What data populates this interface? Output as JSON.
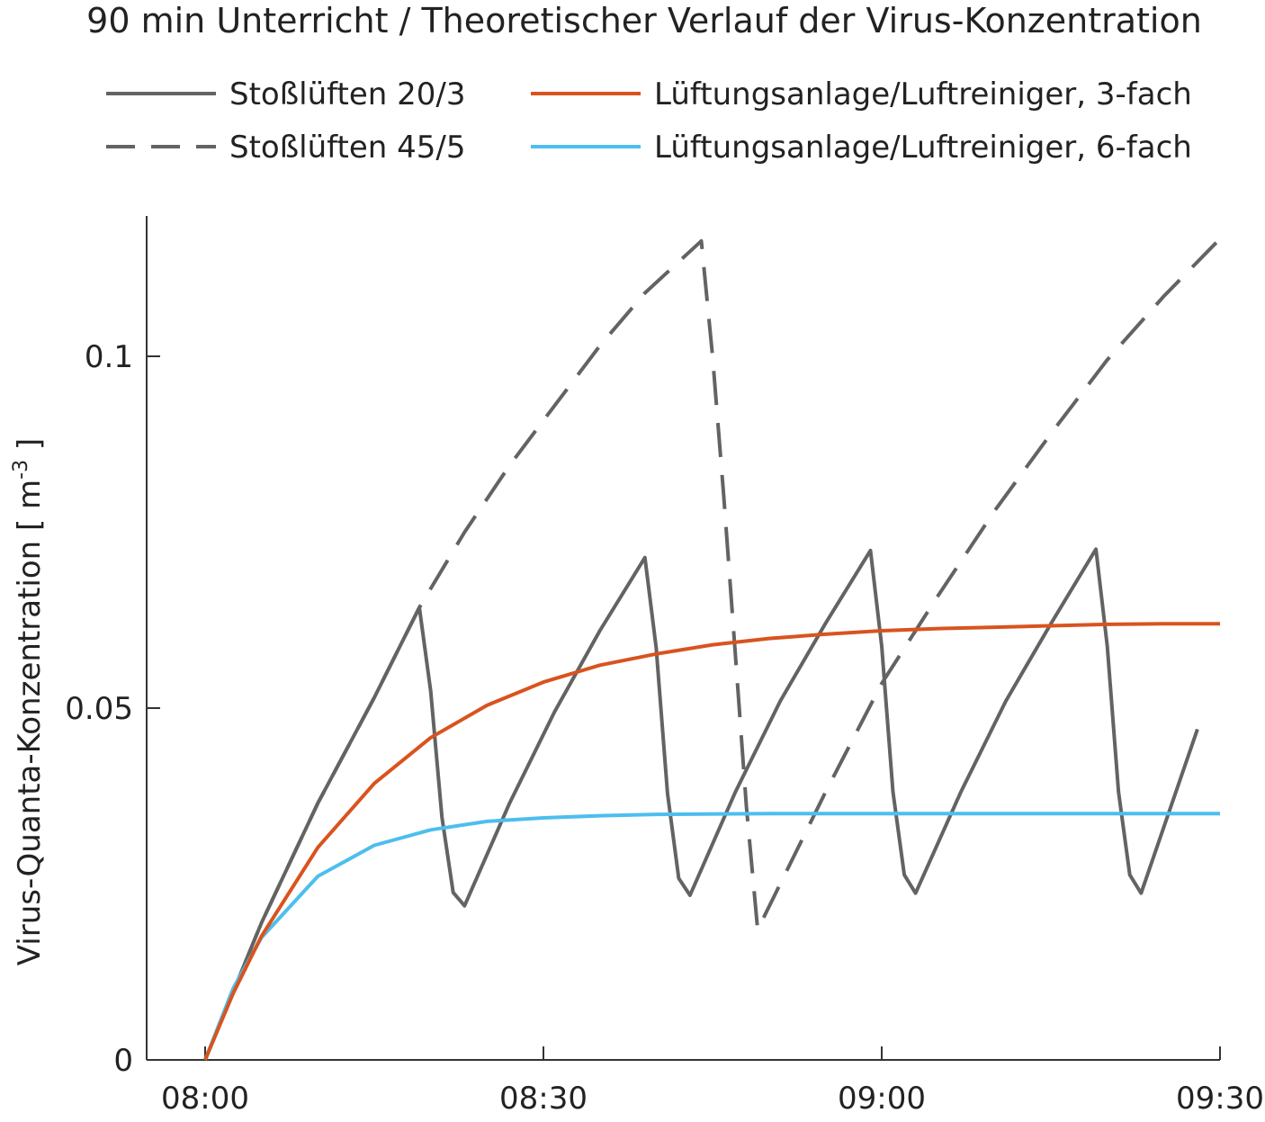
{
  "chart_data": {
    "type": "line",
    "title": "90 min Unterricht / Theoretischer Verlauf der Virus-Konzentration",
    "xlabel": "",
    "ylabel": "Virus-Quanta-Konzentration  [ m",
    "ylabel_exp": "-3",
    "ylabel_end": " ]",
    "x_unit": "minutes after 08:00",
    "xlim": [
      -5,
      90
    ],
    "ylim": [
      0,
      0.12
    ],
    "xticks": [
      {
        "v": 0,
        "label": "08:00"
      },
      {
        "v": 30,
        "label": "08:30"
      },
      {
        "v": 60,
        "label": "09:00"
      },
      {
        "v": 90,
        "label": "09:30"
      }
    ],
    "yticks": [
      {
        "v": 0,
        "label": "0"
      },
      {
        "v": 0.05,
        "label": "0.05"
      },
      {
        "v": 0.1,
        "label": "0.1"
      }
    ],
    "grid": false,
    "legend_placement": "top",
    "series": [
      {
        "name": "Stoßlüften 20/3",
        "color": "#636363",
        "dash": false,
        "x": [
          0,
          5,
          10,
          15,
          19,
          20,
          21,
          22,
          23,
          27,
          31,
          35,
          39,
          40,
          41,
          42,
          43,
          47,
          51,
          55,
          59,
          60,
          61,
          62,
          63,
          67,
          71,
          75,
          79,
          80,
          81,
          82,
          83,
          88
        ],
        "y": [
          0,
          0.0195,
          0.0365,
          0.0515,
          0.0643,
          0.0524,
          0.0345,
          0.0238,
          0.0219,
          0.0365,
          0.0495,
          0.061,
          0.0714,
          0.0586,
          0.0379,
          0.0258,
          0.0234,
          0.038,
          0.051,
          0.062,
          0.0724,
          0.0588,
          0.0381,
          0.0263,
          0.0237,
          0.038,
          0.051,
          0.062,
          0.0726,
          0.0588,
          0.0381,
          0.0263,
          0.0237,
          0.047
        ]
      },
      {
        "name": "Stoßlüften 45/5",
        "color": "#636363",
        "dash": true,
        "x": [
          0,
          5,
          10,
          15,
          19,
          23,
          27,
          31,
          35,
          39,
          44,
          45,
          46,
          47,
          48,
          49,
          55,
          60,
          65,
          70,
          75,
          80,
          85,
          90
        ],
        "y": [
          0,
          0.0195,
          0.0365,
          0.0515,
          0.0643,
          0.075,
          0.0845,
          0.093,
          0.1015,
          0.109,
          0.1164,
          0.1,
          0.08,
          0.058,
          0.036,
          0.0185,
          0.038,
          0.0535,
          0.066,
          0.078,
          0.089,
          0.0995,
          0.1085,
          0.1167
        ]
      },
      {
        "name": "Lüftungsanlage/Luftreiniger, 3-fach",
        "color": "#d9531e",
        "dash": false,
        "x": [
          0,
          2.5,
          5,
          10,
          15,
          20,
          25,
          30,
          35,
          40,
          45,
          50,
          55,
          60,
          65,
          70,
          75,
          80,
          85,
          90
        ],
        "y": [
          0,
          0.0095,
          0.0176,
          0.0302,
          0.0393,
          0.0458,
          0.0504,
          0.0537,
          0.0561,
          0.0577,
          0.059,
          0.0599,
          0.0605,
          0.061,
          0.0613,
          0.0615,
          0.0617,
          0.0619,
          0.062,
          0.062
        ]
      },
      {
        "name": "Lüftungsanlage/Luftreiniger, 6-fach",
        "color": "#4dbeee",
        "dash": false,
        "x": [
          0,
          2.5,
          5,
          10,
          15,
          20,
          25,
          30,
          35,
          40,
          50,
          60,
          70,
          80,
          90
        ],
        "y": [
          0,
          0.0102,
          0.0174,
          0.0261,
          0.0305,
          0.0327,
          0.0339,
          0.0344,
          0.0347,
          0.0349,
          0.035,
          0.035,
          0.035,
          0.035,
          0.035
        ]
      }
    ]
  }
}
